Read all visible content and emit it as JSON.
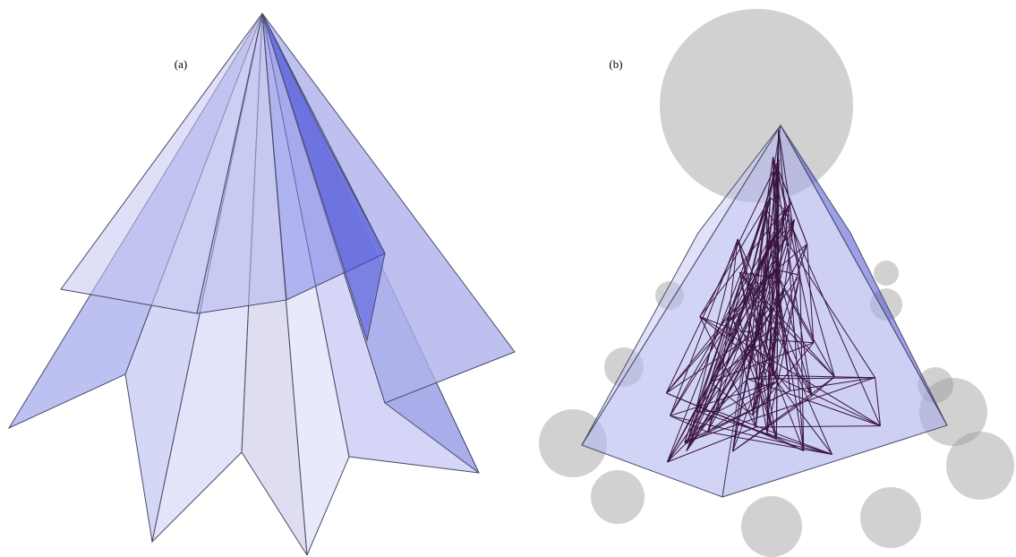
{
  "panels": [
    {
      "label": "(a)"
    },
    {
      "label": "(b)"
    }
  ]
}
